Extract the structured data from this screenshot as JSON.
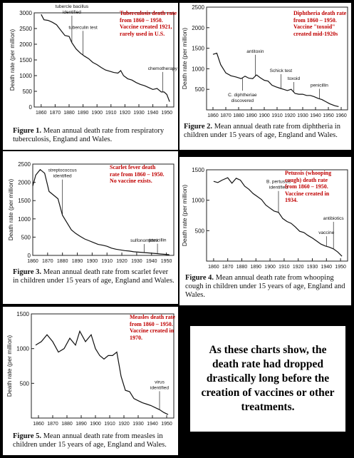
{
  "chart_data": [
    {
      "type": "line",
      "caption_label": "Figure 1.",
      "caption_text": "Mean annual death rate from respiratory tuberculosis, England and Wales.",
      "ylabel": "Death rate (per million)",
      "xlim": [
        1855,
        1955
      ],
      "ylim": [
        0,
        3000
      ],
      "x_ticks": [
        1860,
        1870,
        1880,
        1890,
        1900,
        1910,
        1920,
        1930,
        1940,
        1950
      ],
      "y_ticks": [
        0,
        500,
        1000,
        1500,
        2000,
        2500,
        3000
      ],
      "note": "Tuberculosis death rate from 1860 – 1950.\nVaccine created 1921, rarely used in U.S.",
      "x": [
        1860,
        1862,
        1865,
        1868,
        1871,
        1874,
        1877,
        1880,
        1882,
        1885,
        1888,
        1891,
        1894,
        1897,
        1900,
        1903,
        1906,
        1909,
        1912,
        1915,
        1917,
        1919,
        1922,
        1925,
        1928,
        1931,
        1934,
        1937,
        1940,
        1943,
        1946,
        1948,
        1950,
        1952
      ],
      "y": [
        2950,
        2780,
        2760,
        2700,
        2620,
        2450,
        2280,
        2250,
        2050,
        1850,
        1720,
        1620,
        1540,
        1420,
        1350,
        1260,
        1180,
        1140,
        1100,
        1080,
        1160,
        1000,
        900,
        860,
        780,
        720,
        680,
        620,
        560,
        590,
        480,
        480,
        400,
        170
      ],
      "annotations": [
        {
          "label": "tubercle bacillus identified",
          "x": 1882
        },
        {
          "label": "tuberculin test",
          "x": 1890
        },
        {
          "label": "chemotherapy",
          "x": 1947
        }
      ]
    },
    {
      "type": "line",
      "caption_label": "Figure 2.",
      "caption_text": "Mean annual death rate from diphtheria in children under 15 years of age, England and Wales.",
      "ylabel": "Death rate (per million)",
      "xlim": [
        1855,
        1965
      ],
      "ylim": [
        0,
        2500
      ],
      "x_ticks": [
        1860,
        1870,
        1880,
        1890,
        1900,
        1910,
        1920,
        1930,
        1940,
        1950,
        1960
      ],
      "y_ticks": [
        500,
        1000,
        1500,
        2000,
        2500
      ],
      "note": "Diphtheria death rate from 1860 – 1950.\nVaccine \"toxoid\" created mid-1920s",
      "x": [
        1860,
        1863,
        1866,
        1870,
        1874,
        1878,
        1882,
        1885,
        1888,
        1891,
        1894,
        1897,
        1900,
        1903,
        1906,
        1909,
        1912,
        1915,
        1918,
        1921,
        1924,
        1927,
        1930,
        1933,
        1936,
        1939,
        1942,
        1945,
        1948,
        1951,
        1955,
        1958
      ],
      "y": [
        1350,
        1380,
        1100,
        900,
        830,
        800,
        760,
        820,
        770,
        760,
        850,
        780,
        720,
        700,
        600,
        560,
        530,
        500,
        470,
        500,
        400,
        380,
        380,
        350,
        350,
        320,
        280,
        250,
        200,
        150,
        100,
        80
      ],
      "annotations": [
        {
          "label": "antitoxin",
          "x": 1893
        },
        {
          "label": "C. diphtheriae discovered",
          "x": 1883
        },
        {
          "label": "Schick test",
          "x": 1913
        },
        {
          "label": "toxoid",
          "x": 1923
        },
        {
          "label": "penicillin",
          "x": 1943
        }
      ]
    },
    {
      "type": "line",
      "caption_label": "Figure 3.",
      "caption_text": "Mean annual death rate from scarlet fever in children under 15 years of age, England and Wales.",
      "ylabel": "Death rate (per million)",
      "xlim": [
        1860,
        1955
      ],
      "ylim": [
        0,
        2500
      ],
      "x_ticks": [
        1860,
        1870,
        1880,
        1890,
        1900,
        1910,
        1920,
        1930,
        1940,
        1950
      ],
      "y_ticks": [
        0,
        500,
        1000,
        1500,
        2000,
        2500
      ],
      "note": "Scarlet fever death rate from 1860 – 1950.\nNo vaccine exists.",
      "x": [
        1860,
        1862,
        1865,
        1868,
        1871,
        1874,
        1877,
        1880,
        1883,
        1886,
        1889,
        1892,
        1895,
        1898,
        1901,
        1904,
        1907,
        1910,
        1913,
        1916,
        1919,
        1922,
        1925,
        1928,
        1931,
        1934,
        1937,
        1940,
        1943,
        1946,
        1949,
        1952
      ],
      "y": [
        1900,
        2200,
        2350,
        2250,
        1750,
        1650,
        1550,
        1100,
        900,
        700,
        600,
        520,
        450,
        400,
        350,
        300,
        280,
        250,
        200,
        170,
        150,
        130,
        120,
        100,
        90,
        80,
        70,
        60,
        50,
        40,
        30,
        20
      ],
      "annotations": [
        {
          "label": "streptococcus identified",
          "x": 1880
        },
        {
          "label": "sulfonomides",
          "x": 1935
        },
        {
          "label": "penicillin",
          "x": 1944
        }
      ]
    },
    {
      "type": "line",
      "caption_label": "Figure 4.",
      "caption_text": "Mean annual death rate from whooping cough in children under 15 years of age, England and Wales.",
      "ylabel": "Death rate (per million)",
      "xlim": [
        1855,
        1955
      ],
      "ylim": [
        0,
        1500
      ],
      "x_ticks": [
        1860,
        1870,
        1880,
        1890,
        1900,
        1910,
        1920,
        1930,
        1940,
        1950
      ],
      "y_ticks": [
        500,
        1000,
        1500
      ],
      "note": "Petussis (whooping cough) death rate from 1860 – 1950.\nVaccine created in 1934.",
      "x": [
        1860,
        1863,
        1866,
        1870,
        1873,
        1876,
        1879,
        1882,
        1885,
        1888,
        1891,
        1894,
        1897,
        1900,
        1903,
        1906,
        1909,
        1912,
        1915,
        1918,
        1921,
        1924,
        1927,
        1930,
        1933,
        1936,
        1939,
        1942,
        1945,
        1948,
        1951
      ],
      "y": [
        1310,
        1290,
        1330,
        1370,
        1280,
        1360,
        1330,
        1230,
        1180,
        1110,
        1060,
        1010,
        920,
        870,
        820,
        800,
        700,
        650,
        620,
        560,
        490,
        470,
        420,
        380,
        330,
        280,
        250,
        230,
        200,
        150,
        80
      ],
      "annotations": [
        {
          "label": "B. pertussis identified",
          "x": 1906
        },
        {
          "label": "vaccine",
          "x": 1940
        },
        {
          "label": "antibiotics",
          "x": 1945
        }
      ]
    },
    {
      "type": "line",
      "caption_label": "Figure 5.",
      "caption_text": "Mean annual death rate from measles in children under 15 years of age, England and Wales.",
      "ylabel": "Death rate (per million)",
      "xlim": [
        1855,
        1955
      ],
      "ylim": [
        0,
        1500
      ],
      "x_ticks": [
        1860,
        1870,
        1880,
        1890,
        1900,
        1910,
        1920,
        1930,
        1940,
        1950
      ],
      "y_ticks": [
        500,
        1000,
        1500
      ],
      "note": "Measles death rate from 1860 – 1950.\nVaccine created in 1970.",
      "x": [
        1858,
        1862,
        1866,
        1870,
        1874,
        1878,
        1882,
        1886,
        1889,
        1893,
        1897,
        1900,
        1903,
        1906,
        1909,
        1912,
        1915,
        1918,
        1921,
        1924,
        1927,
        1930,
        1933,
        1936,
        1939,
        1942,
        1945,
        1948,
        1951
      ],
      "y": [
        1050,
        1100,
        1200,
        1100,
        950,
        1000,
        1150,
        1050,
        1250,
        1100,
        1200,
        1000,
        900,
        850,
        900,
        900,
        950,
        600,
        400,
        380,
        280,
        250,
        220,
        200,
        180,
        150,
        120,
        80,
        50
      ],
      "annotations": [
        {
          "label": "virus identified",
          "x": 1945
        }
      ]
    }
  ],
  "callout": {
    "text": "As these charts show, the death rate had dropped drastically long before the creation of vaccines or other treatments."
  }
}
